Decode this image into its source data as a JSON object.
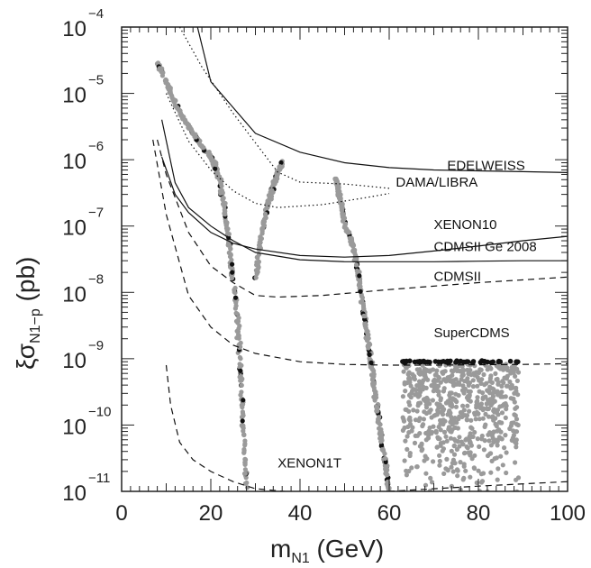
{
  "chart_data": {
    "type": "scatter",
    "x_axis": {
      "label_main": "m",
      "label_sub": "N1",
      "label_unit": " (GeV)",
      "range": [
        0,
        100
      ],
      "ticks": [
        "0",
        "20",
        "40",
        "60",
        "80",
        "100"
      ]
    },
    "y_axis": {
      "label_main": "ξσ",
      "label_sub": "N1−p",
      "label_unit": " (pb)",
      "scale": "log",
      "range": [
        1e-11,
        0.0001
      ],
      "tick_base": "10",
      "tick_exponents": [
        "−4",
        "−5",
        "−6",
        "−7",
        "−8",
        "−9",
        "−10",
        "−11"
      ]
    },
    "curves": [
      {
        "name": "EDELWEISS",
        "style": "solid",
        "points": [
          [
            17,
            0.0001
          ],
          [
            20,
            1.5e-05
          ],
          [
            30,
            2.5e-06
          ],
          [
            40,
            1.3e-06
          ],
          [
            50,
            9e-07
          ],
          [
            60,
            7.6e-07
          ],
          [
            70,
            7e-07
          ],
          [
            80,
            6.8e-07
          ],
          [
            90,
            6.6e-07
          ],
          [
            100,
            6.4e-07
          ]
        ]
      },
      {
        "name": "DAMA/LIBRA",
        "style": "dotted",
        "points": [
          [
            13,
            0.0001
          ],
          [
            18,
            2.5e-05
          ],
          [
            25,
            5e-06
          ],
          [
            30,
            1.8e-06
          ],
          [
            35,
            6.5e-07
          ],
          [
            40,
            4.6e-07
          ],
          [
            50,
            4.3e-07
          ],
          [
            55,
            4e-07
          ],
          [
            60,
            3.7e-07
          ]
        ]
      },
      {
        "name": "DAMA/LIBRA",
        "style": "dotted",
        "points": [
          [
            10,
            1e-05
          ],
          [
            15,
            1.9e-06
          ],
          [
            20,
            7e-07
          ],
          [
            25,
            3.4e-07
          ],
          [
            30,
            2.2e-07
          ],
          [
            35,
            1.9e-07
          ],
          [
            45,
            2.1e-07
          ],
          [
            55,
            2.7e-07
          ],
          [
            60,
            3.1e-07
          ]
        ]
      },
      {
        "name": "XENON10",
        "style": "solid",
        "points": [
          [
            9,
            1.1e-06
          ],
          [
            12,
            3e-07
          ],
          [
            15,
            1.6e-07
          ],
          [
            20,
            8e-08
          ],
          [
            25,
            5.5e-08
          ],
          [
            30,
            4.5e-08
          ],
          [
            40,
            3.6e-08
          ],
          [
            50,
            3.4e-08
          ],
          [
            60,
            3.6e-08
          ],
          [
            70,
            4.2e-08
          ],
          [
            80,
            5e-08
          ],
          [
            90,
            6e-08
          ],
          [
            100,
            7e-08
          ]
        ]
      },
      {
        "name": "CDMSII Ge 2008",
        "style": "solid",
        "points": [
          [
            9,
            4e-06
          ],
          [
            12,
            4.5e-07
          ],
          [
            15,
            1.9e-07
          ],
          [
            20,
            1e-07
          ],
          [
            25,
            6e-08
          ],
          [
            30,
            4e-08
          ],
          [
            40,
            3.1e-08
          ],
          [
            50,
            2.9e-08
          ],
          [
            60,
            2.9e-08
          ],
          [
            70,
            2.9e-08
          ],
          [
            80,
            2.95e-08
          ],
          [
            90,
            3e-08
          ],
          [
            100,
            3e-08
          ]
        ]
      },
      {
        "name": "CDMSII",
        "style": "dashed",
        "points": [
          [
            8,
            2e-06
          ],
          [
            10,
            6e-07
          ],
          [
            15,
            8e-08
          ],
          [
            20,
            2.5e-08
          ],
          [
            25,
            1.4e-08
          ],
          [
            30,
            9e-09
          ],
          [
            35,
            8.5e-09
          ],
          [
            45,
            9e-09
          ],
          [
            60,
            1.1e-08
          ],
          [
            80,
            1.4e-08
          ],
          [
            100,
            1.7e-08
          ]
        ]
      },
      {
        "name": "SuperCDMS",
        "style": "dashed",
        "points": [
          [
            7,
            2e-06
          ],
          [
            10,
            1.5e-07
          ],
          [
            15,
            9e-09
          ],
          [
            20,
            3e-09
          ],
          [
            25,
            1.6e-09
          ],
          [
            30,
            1.2e-09
          ],
          [
            40,
            9e-10
          ],
          [
            50,
            8.2e-10
          ],
          [
            60,
            8e-10
          ],
          [
            70,
            8e-10
          ],
          [
            80,
            8.1e-10
          ],
          [
            90,
            8.2e-10
          ],
          [
            100,
            8.4e-10
          ]
        ]
      },
      {
        "name": "XENON1T",
        "style": "dashed",
        "points": [
          [
            10,
            8e-10
          ],
          [
            11,
            2e-10
          ],
          [
            13,
            5.5e-11
          ],
          [
            16,
            3e-11
          ],
          [
            20,
            2e-11
          ],
          [
            25,
            1.4e-11
          ],
          [
            30,
            1.1e-11
          ],
          [
            40,
            9.5e-12
          ],
          [
            50,
            9e-12
          ],
          [
            60,
            1e-11
          ],
          [
            80,
            1.2e-11
          ],
          [
            100,
            1.4e-11
          ]
        ]
      }
    ],
    "curve_labels": [
      {
        "text": "EDELWEISS",
        "x": 73,
        "y": 7e-07
      },
      {
        "text": "DAMA/LIBRA",
        "x": 61.5,
        "y": 3.9e-07
      },
      {
        "text": "XENON10",
        "x": 70,
        "y": 9e-08
      },
      {
        "text": "CDMSII Ge 2008",
        "x": 70,
        "y": 4.2e-08
      },
      {
        "text": "CDMSII",
        "x": 70,
        "y": 1.5e-08
      },
      {
        "text": "SuperCDMS",
        "x": 70,
        "y": 2.1e-09
      },
      {
        "text": "XENON1T",
        "x": 35,
        "y": 2.3e-11
      }
    ],
    "scatter_branches": [
      {
        "name": "branch-a",
        "points": [
          [
            8,
            3e-05
          ],
          [
            10,
            1.5e-05
          ],
          [
            12,
            7e-06
          ],
          [
            14,
            4e-06
          ],
          [
            16,
            2.5e-06
          ],
          [
            18,
            1.6e-06
          ],
          [
            20,
            1.1e-06
          ],
          [
            21,
            8e-07
          ],
          [
            22,
            5e-07
          ],
          [
            23,
            2e-07
          ],
          [
            24,
            6e-08
          ],
          [
            25,
            1.5e-08
          ],
          [
            26,
            4e-09
          ],
          [
            26.5,
            1e-09
          ],
          [
            27,
            3e-10
          ],
          [
            27.5,
            5e-11
          ],
          [
            28,
            1e-11
          ]
        ]
      },
      {
        "name": "branch-b",
        "points": [
          [
            30,
            1.3e-08
          ],
          [
            31,
            5e-08
          ],
          [
            32,
            1.3e-07
          ],
          [
            33,
            2.4e-07
          ],
          [
            34,
            4e-07
          ],
          [
            35,
            6.5e-07
          ],
          [
            36,
            9e-07
          ]
        ]
      },
      {
        "name": "branch-c",
        "points": [
          [
            48,
            5.5e-07
          ],
          [
            49,
            2.6e-07
          ],
          [
            50,
            1.1e-07
          ],
          [
            52,
            5e-08
          ],
          [
            53,
            2e-08
          ],
          [
            54,
            7e-09
          ],
          [
            55,
            2.5e-09
          ],
          [
            56,
            8e-10
          ],
          [
            57,
            2.5e-10
          ],
          [
            58,
            8e-11
          ],
          [
            59,
            3e-11
          ],
          [
            60,
            1e-11
          ]
        ]
      }
    ],
    "scatter_band": {
      "x_range": [
        63,
        89
      ],
      "y_range": [
        1e-11,
        1e-09
      ],
      "dark_top": 9e-10
    },
    "colors": {
      "axes": "#222222",
      "curves": "#111111",
      "points_light": "#9a9a9a",
      "points_dark": "#111111"
    }
  }
}
